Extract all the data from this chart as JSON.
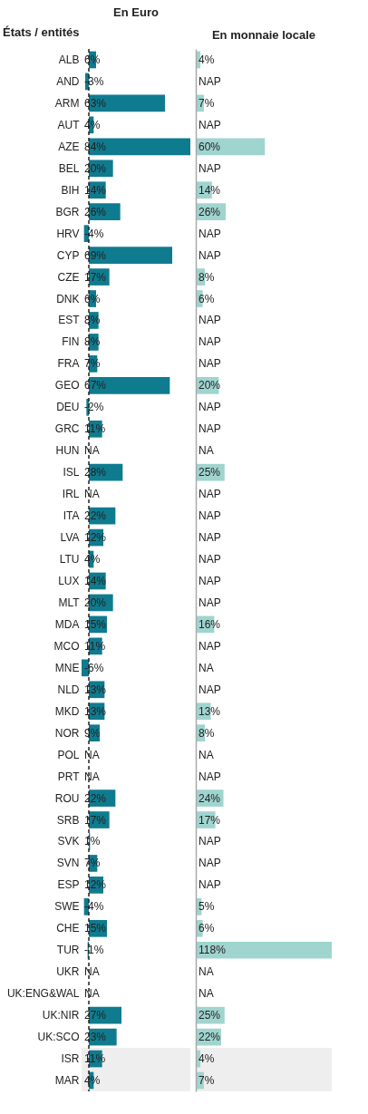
{
  "chart_data": [
    {
      "type": "bar",
      "orientation": "horizontal",
      "title": "En Euro",
      "ylabel": "États / entités",
      "tick_labels": "y",
      "color": "#0f7b8f",
      "categories": [
        "ALB",
        "AND",
        "ARM",
        "AUT",
        "AZE",
        "BEL",
        "BIH",
        "BGR",
        "HRV",
        "CYP",
        "CZE",
        "DNK",
        "EST",
        "FIN",
        "FRA",
        "GEO",
        "DEU",
        "GRC",
        "HUN",
        "ISL",
        "IRL",
        "ITA",
        "LVA",
        "LTU",
        "LUX",
        "MLT",
        "MDA",
        "MCO",
        "MNE",
        "NLD",
        "MKD",
        "NOR",
        "POL",
        "PRT",
        "ROU",
        "SRB",
        "SVK",
        "SVN",
        "ESP",
        "SWE",
        "CHE",
        "TUR",
        "UKR",
        "UK:ENG&WAL",
        "UK:NIR",
        "UK:SCO",
        "ISR",
        "MAR"
      ],
      "values": [
        6,
        -3,
        63,
        4,
        84,
        20,
        14,
        26,
        -4,
        69,
        17,
        6,
        8,
        8,
        7,
        67,
        -2,
        11,
        null,
        28,
        null,
        22,
        12,
        4,
        14,
        20,
        15,
        11,
        -6,
        13,
        13,
        9,
        null,
        null,
        22,
        17,
        1,
        7,
        12,
        -4,
        15,
        -1,
        null,
        null,
        27,
        23,
        11,
        4
      ],
      "value_labels": [
        "6%",
        "-3%",
        "63%",
        "4%",
        "84%",
        "20%",
        "14%",
        "26%",
        "-4%",
        "69%",
        "17%",
        "6%",
        "8%",
        "8%",
        "7%",
        "67%",
        "-2%",
        "11%",
        "NA",
        "28%",
        "NA",
        "22%",
        "12%",
        "4%",
        "14%",
        "20%",
        "15%",
        "11%",
        "-6%",
        "13%",
        "13%",
        "9%",
        "NA",
        "NA",
        "22%",
        "17%",
        "1%",
        "7%",
        "12%",
        "-4%",
        "15%",
        "-1%",
        "NA",
        "NA",
        "27%",
        "23%",
        "11%",
        "4%"
      ],
      "ref_lines": [
        {
          "axis": "x",
          "value": 0,
          "line_style": "dashed",
          "color": "#222222"
        }
      ],
      "bands": [
        {
          "axis": "y",
          "from": "ISR",
          "to": "MAR",
          "color": "#eeeeee"
        }
      ]
    },
    {
      "type": "bar",
      "orientation": "horizontal",
      "title": "En monnaie locale",
      "tick_labels": false,
      "color": "#9fd4cf",
      "categories": [
        "ALB",
        "AND",
        "ARM",
        "AUT",
        "AZE",
        "BEL",
        "BIH",
        "BGR",
        "HRV",
        "CYP",
        "CZE",
        "DNK",
        "EST",
        "FIN",
        "FRA",
        "GEO",
        "DEU",
        "GRC",
        "HUN",
        "ISL",
        "IRL",
        "ITA",
        "LVA",
        "LTU",
        "LUX",
        "MLT",
        "MDA",
        "MCO",
        "MNE",
        "NLD",
        "MKD",
        "NOR",
        "POL",
        "PRT",
        "ROU",
        "SRB",
        "SVK",
        "SVN",
        "ESP",
        "SWE",
        "CHE",
        "TUR",
        "UKR",
        "UK:ENG&WAL",
        "UK:NIR",
        "UK:SCO",
        "ISR",
        "MAR"
      ],
      "values": [
        4,
        null,
        7,
        null,
        60,
        null,
        14,
        26,
        null,
        null,
        8,
        6,
        null,
        null,
        null,
        20,
        null,
        null,
        null,
        25,
        null,
        null,
        null,
        null,
        null,
        null,
        16,
        null,
        null,
        null,
        13,
        8,
        null,
        null,
        24,
        17,
        null,
        null,
        null,
        5,
        6,
        118,
        null,
        null,
        25,
        22,
        4,
        7
      ],
      "value_labels": [
        "4%",
        "NAP",
        "7%",
        "NAP",
        "60%",
        "NAP",
        "14%",
        "26%",
        "NAP",
        "NAP",
        "8%",
        "6%",
        "NAP",
        "NAP",
        "NAP",
        "20%",
        "NAP",
        "NAP",
        "NA",
        "25%",
        "NAP",
        "NAP",
        "NAP",
        "NAP",
        "NAP",
        "NAP",
        "16%",
        "NAP",
        "NA",
        "NAP",
        "13%",
        "8%",
        "NA",
        "NAP",
        "24%",
        "17%",
        "NAP",
        "NAP",
        "NAP",
        "5%",
        "6%",
        "118%",
        "NA",
        "NA",
        "25%",
        "22%",
        "4%",
        "7%"
      ],
      "bands": [
        {
          "axis": "y",
          "from": "ISR",
          "to": "MAR",
          "color": "#eeeeee"
        }
      ]
    }
  ]
}
